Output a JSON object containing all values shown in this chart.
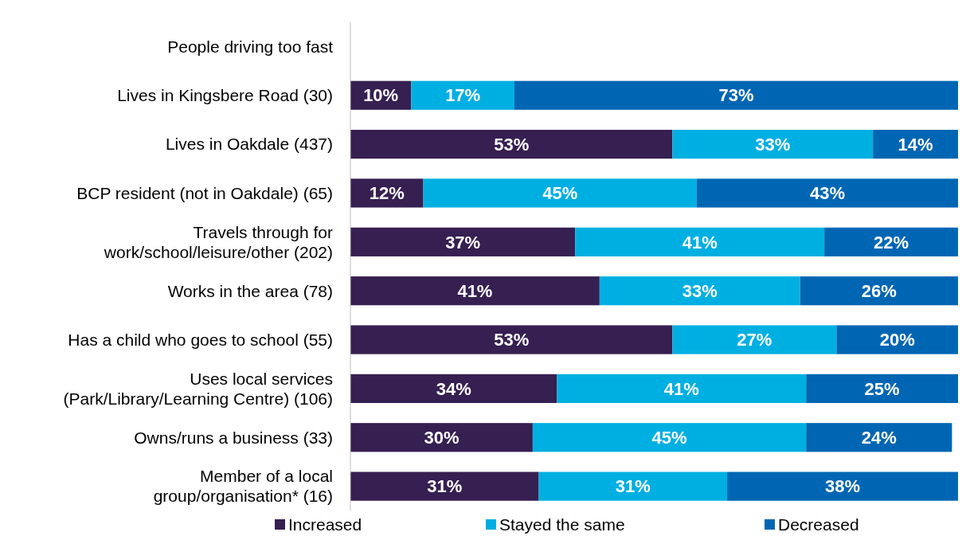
{
  "chart_data": {
    "type": "bar",
    "orientation": "horizontal",
    "stacked": true,
    "categories": [
      "People driving too fast",
      "Lives in Kingsbere Road (30)",
      "Lives in Oakdale (437)",
      "BCP resident (not in Oakdale) (65)",
      "Travels through for\nwork/school/leisure/other (202)",
      "Works in the area (78)",
      "Has a child who goes to school (55)",
      "Uses local services\n(Park/Library/Learning Centre) (106)",
      "Owns/runs a business (33)",
      "Member of a local\ngroup/organisation* (16)"
    ],
    "series": [
      {
        "name": "Increased",
        "color": "#361f51",
        "values": [
          null,
          10,
          53,
          12,
          37,
          41,
          53,
          34,
          30,
          31
        ],
        "value_labels": [
          null,
          "10%",
          "53%",
          "12%",
          "37%",
          "41%",
          "53%",
          "34%",
          "30%",
          "31%"
        ]
      },
      {
        "name": "Stayed the same",
        "color": "#00afe1",
        "values": [
          null,
          17,
          33,
          45,
          41,
          33,
          27,
          41,
          45,
          31
        ],
        "value_labels": [
          null,
          "17%",
          "33%",
          "45%",
          "41%",
          "33%",
          "27%",
          "41%",
          "45%",
          "31%"
        ]
      },
      {
        "name": "Decreased",
        "color": "#0066b3",
        "values": [
          null,
          73,
          14,
          43,
          22,
          26,
          20,
          25,
          24,
          38
        ],
        "value_labels": [
          null,
          "73%",
          "14%",
          "43%",
          "22%",
          "26%",
          "20%",
          "25%",
          "24%",
          "38%"
        ]
      }
    ],
    "xlim": [
      0,
      100
    ],
    "tick_labels": "y",
    "legend": "bottom"
  }
}
